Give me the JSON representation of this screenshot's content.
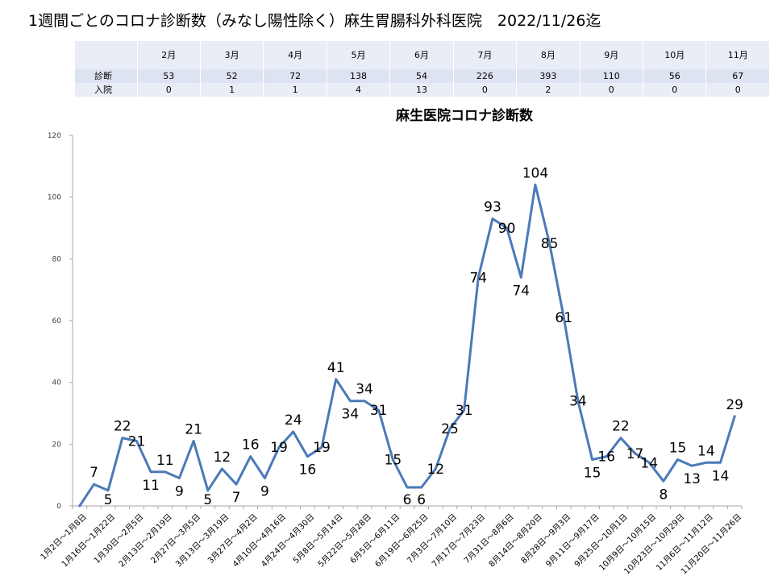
{
  "header": {
    "title": "1週間ごとのコロナ診断数（みなし陽性除く）麻生胃腸科外科医院　2022/11/26迄"
  },
  "summary_table": {
    "months": [
      "2月",
      "3月",
      "4月",
      "5月",
      "6月",
      "7月",
      "8月",
      "9月",
      "10月",
      "11月"
    ],
    "rows": [
      {
        "label": "診断",
        "values": [
          "53",
          "52",
          "72",
          "138",
          "54",
          "226",
          "393",
          "110",
          "56",
          "67"
        ]
      },
      {
        "label": "入院",
        "values": [
          "0",
          "1",
          "1",
          "4",
          "13",
          "0",
          "2",
          "0",
          "0",
          "0"
        ]
      }
    ]
  },
  "chart_data": {
    "type": "line",
    "title": "麻生医院コロナ診断数",
    "xlabel": "",
    "ylabel": "",
    "ylim": [
      0,
      120
    ],
    "yticks": [
      0,
      20,
      40,
      60,
      80,
      100,
      120
    ],
    "grid": false,
    "x_labels": [
      "1月2日～1月8日",
      "1月16日～1月22日",
      "1月30日～2月5日",
      "2月13日～2月19日",
      "2月27日～3月5日",
      "3月13日～3月19日",
      "3月27日～4月2日",
      "4月10日～4月16日",
      "4月24日～4月30日",
      "5月8日～5月14日",
      "5月22日～5月28日",
      "6月5日～6月11日",
      "6月19日～6月25日",
      "7月3日～7月10日",
      "7月17日～7月23日",
      "7月31日～8月6日",
      "8月14日～8月20日",
      "8月28日～9月3日",
      "9月11日～9月17日",
      "9月25日～10月1日",
      "10月9日～10月15日",
      "10月23日～10月29日",
      "11月6日～11月12日",
      "11月20日～11月26日"
    ],
    "series": [
      {
        "values": [
          0,
          7,
          5,
          22,
          21,
          11,
          11,
          9,
          21,
          5,
          12,
          7,
          16,
          9,
          19,
          24,
          16,
          19,
          41,
          34,
          34,
          31,
          15,
          6,
          6,
          12,
          25,
          31,
          74,
          93,
          90,
          74,
          104,
          85,
          61,
          34,
          15,
          16,
          22,
          17,
          14,
          8,
          15,
          13,
          14,
          14,
          29
        ]
      }
    ],
    "colors": {
      "line": "#4a7ab8",
      "axis": "#a6a6a6"
    }
  }
}
